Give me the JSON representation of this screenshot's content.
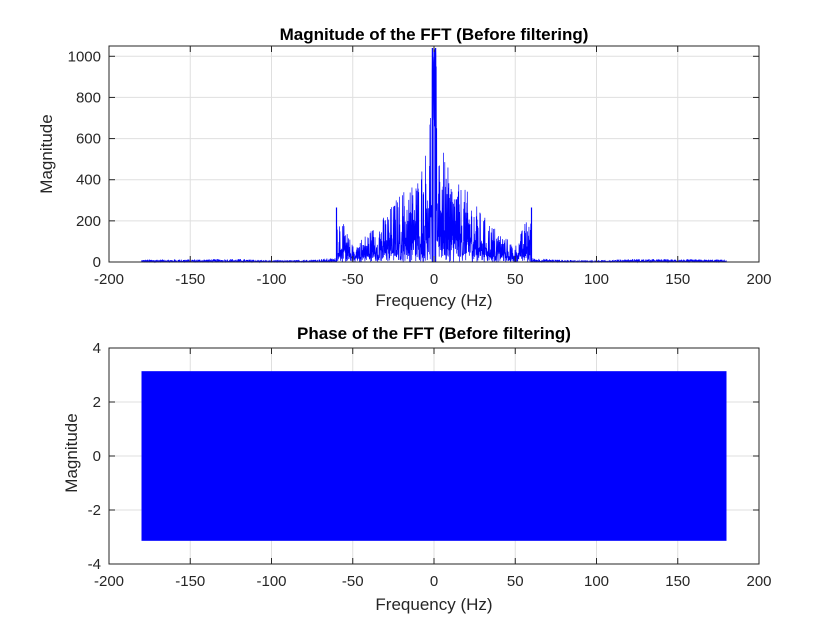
{
  "colors": {
    "series": "#0000ff",
    "axis": "#262626",
    "grid": "#dfdfdf",
    "background": "#ffffff"
  },
  "chart_data": [
    {
      "type": "line",
      "title": "Magnitude of the FFT (Before filtering)",
      "xlabel": "Frequency (Hz)",
      "ylabel": "Magnitude",
      "xlim": [
        -200,
        200
      ],
      "ylim": [
        0,
        1050
      ],
      "xticks": [
        -200,
        -150,
        -100,
        -50,
        0,
        50,
        100,
        150,
        200
      ],
      "yticks": [
        0,
        200,
        400,
        600,
        800,
        1000
      ],
      "grid": true,
      "series": [
        {
          "x": [
            -180,
            -120,
            -100,
            -80,
            -60,
            -60,
            -50,
            -40,
            -30,
            -20,
            -15,
            -10,
            -5,
            -3,
            -1,
            0,
            1,
            3,
            5,
            10,
            15,
            20,
            30,
            40,
            50,
            60,
            60,
            80,
            100,
            120,
            180
          ],
          "y": [
            12,
            15,
            8,
            10,
            20,
            265,
            80,
            150,
            230,
            350,
            380,
            420,
            560,
            700,
            1040,
            1040,
            1040,
            700,
            560,
            420,
            380,
            350,
            230,
            150,
            80,
            265,
            20,
            10,
            8,
            15,
            12
          ],
          "ymin_envelope": [
            0,
            0,
            0,
            0,
            0,
            0,
            0,
            0,
            0,
            0,
            0,
            0,
            0,
            0,
            0,
            0,
            0,
            0,
            0,
            0,
            0,
            0,
            0,
            0,
            0,
            0,
            0,
            0,
            0,
            0,
            0
          ]
        }
      ]
    },
    {
      "type": "line",
      "title": "Phase of the FFT (Before filtering)",
      "xlabel": "Frequency (Hz)",
      "ylabel": "Magnitude",
      "xlim": [
        -200,
        200
      ],
      "ylim": [
        -4,
        4
      ],
      "xticks": [
        -200,
        -150,
        -100,
        -50,
        0,
        50,
        100,
        150,
        200
      ],
      "yticks": [
        -4,
        -2,
        0,
        2,
        4
      ],
      "grid": true,
      "series": [
        {
          "x": [
            -180,
            180
          ],
          "y_range": [
            -3.1416,
            3.1416
          ]
        }
      ]
    }
  ]
}
